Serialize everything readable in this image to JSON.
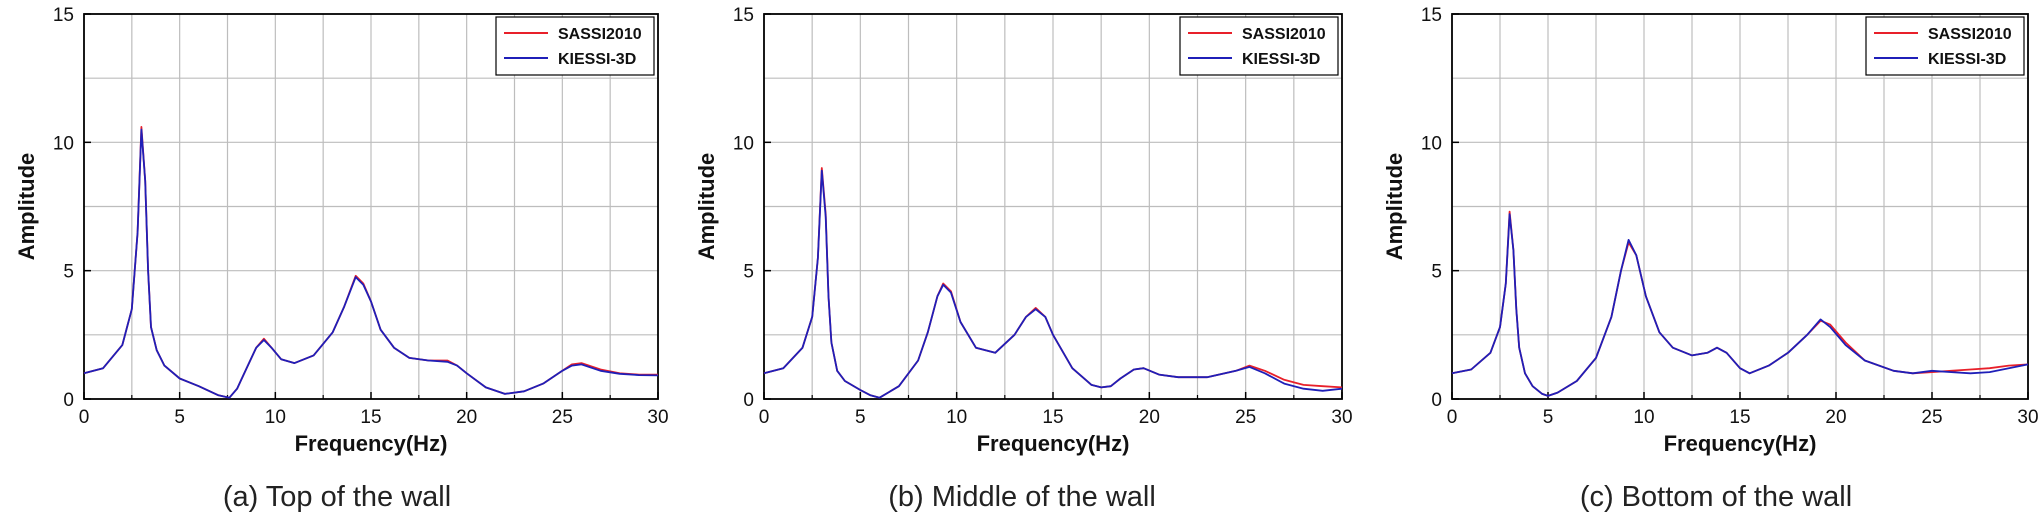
{
  "colors": {
    "sassi": "#e8202a",
    "kiessi": "#1f1fb8",
    "grid": "#bdbdbd",
    "axis": "#000000"
  },
  "chart_data": [
    {
      "type": "line",
      "caption": "(a) Top of the wall",
      "xlabel": "Frequency(Hz)",
      "ylabel": "Amplitude",
      "xlim": [
        0,
        30
      ],
      "ylim": [
        0,
        15
      ],
      "xticks": [
        "0",
        "5",
        "10",
        "15",
        "20",
        "25",
        "30"
      ],
      "yticks": [
        "0",
        "5",
        "10",
        "15"
      ],
      "legend_position": "top-right",
      "series": [
        {
          "name": "SASSI2010",
          "color": "#e8202a",
          "x": [
            0,
            1,
            2,
            2.5,
            2.8,
            3.0,
            3.2,
            3.35,
            3.5,
            3.8,
            4.2,
            5,
            6,
            7,
            7.6,
            8,
            8.5,
            9.0,
            9.4,
            9.8,
            10.3,
            11,
            12,
            13,
            13.6,
            14.2,
            14.6,
            15,
            15.5,
            16.2,
            17,
            18,
            19,
            19.5,
            20,
            21,
            22,
            23,
            24,
            25,
            25.5,
            26,
            27,
            28,
            29,
            30
          ],
          "y": [
            1.0,
            1.2,
            2.1,
            3.5,
            6.5,
            10.6,
            8.5,
            5.0,
            2.8,
            1.9,
            1.3,
            0.8,
            0.5,
            0.15,
            0.05,
            0.4,
            1.2,
            2.0,
            2.35,
            2.0,
            1.55,
            1.4,
            1.7,
            2.6,
            3.6,
            4.8,
            4.5,
            3.8,
            2.7,
            2.0,
            1.6,
            1.5,
            1.5,
            1.3,
            1.0,
            0.45,
            0.2,
            0.3,
            0.6,
            1.1,
            1.35,
            1.4,
            1.15,
            1.0,
            0.95,
            0.95
          ]
        },
        {
          "name": "KIESSI-3D",
          "color": "#1f1fb8",
          "x": [
            0,
            1,
            2,
            2.5,
            2.8,
            3.0,
            3.2,
            3.35,
            3.5,
            3.8,
            4.2,
            5,
            6,
            7,
            7.6,
            8,
            8.5,
            9.0,
            9.4,
            9.8,
            10.3,
            11,
            12,
            13,
            13.6,
            14.2,
            14.6,
            15,
            15.5,
            16.2,
            17,
            18,
            19,
            19.5,
            20,
            21,
            22,
            23,
            24,
            25,
            25.5,
            26,
            27,
            28,
            29,
            30
          ],
          "y": [
            1.0,
            1.2,
            2.1,
            3.5,
            6.5,
            10.5,
            8.5,
            5.0,
            2.8,
            1.9,
            1.3,
            0.8,
            0.5,
            0.15,
            0.05,
            0.4,
            1.2,
            2.0,
            2.3,
            2.0,
            1.55,
            1.4,
            1.7,
            2.6,
            3.6,
            4.75,
            4.45,
            3.8,
            2.7,
            2.0,
            1.6,
            1.5,
            1.45,
            1.3,
            1.0,
            0.45,
            0.2,
            0.3,
            0.6,
            1.1,
            1.3,
            1.35,
            1.1,
            0.98,
            0.93,
            0.92
          ]
        }
      ]
    },
    {
      "type": "line",
      "caption": "(b) Middle of the wall",
      "xlabel": "Frequency(Hz)",
      "ylabel": "Amplitude",
      "xlim": [
        0,
        30
      ],
      "ylim": [
        0,
        15
      ],
      "xticks": [
        "0",
        "5",
        "10",
        "15",
        "20",
        "25",
        "30"
      ],
      "yticks": [
        "0",
        "5",
        "10",
        "15"
      ],
      "legend_position": "top-right",
      "series": [
        {
          "name": "SASSI2010",
          "color": "#e8202a",
          "x": [
            0,
            1,
            2,
            2.5,
            2.8,
            3.0,
            3.2,
            3.35,
            3.5,
            3.8,
            4.2,
            5,
            5.5,
            6,
            7,
            8,
            8.5,
            9,
            9.3,
            9.7,
            10.2,
            11,
            12,
            13,
            13.6,
            14.1,
            14.6,
            15,
            16,
            17,
            17.5,
            18,
            18.5,
            19.2,
            19.7,
            20.5,
            21.5,
            23,
            24.5,
            25.2,
            26,
            27,
            28,
            29,
            30
          ],
          "y": [
            1.0,
            1.2,
            2.0,
            3.2,
            5.5,
            9.0,
            7.2,
            4.0,
            2.2,
            1.1,
            0.7,
            0.35,
            0.15,
            0.05,
            0.5,
            1.5,
            2.6,
            4.0,
            4.5,
            4.2,
            3.0,
            2.0,
            1.8,
            2.5,
            3.2,
            3.55,
            3.2,
            2.5,
            1.2,
            0.55,
            0.45,
            0.5,
            0.8,
            1.15,
            1.2,
            0.95,
            0.85,
            0.85,
            1.1,
            1.3,
            1.1,
            0.75,
            0.55,
            0.5,
            0.45
          ]
        },
        {
          "name": "KIESSI-3D",
          "color": "#1f1fb8",
          "x": [
            0,
            1,
            2,
            2.5,
            2.8,
            3.0,
            3.2,
            3.35,
            3.5,
            3.8,
            4.2,
            5,
            5.5,
            6,
            7,
            8,
            8.5,
            9,
            9.3,
            9.7,
            10.2,
            11,
            12,
            13,
            13.6,
            14.1,
            14.6,
            15,
            16,
            17,
            17.5,
            18,
            18.5,
            19.2,
            19.7,
            20.5,
            21.5,
            23,
            24.5,
            25.2,
            26,
            27,
            28,
            29,
            30
          ],
          "y": [
            1.0,
            1.2,
            2.0,
            3.2,
            5.5,
            8.9,
            7.1,
            4.0,
            2.2,
            1.1,
            0.7,
            0.35,
            0.15,
            0.05,
            0.5,
            1.5,
            2.6,
            4.0,
            4.45,
            4.15,
            3.0,
            2.0,
            1.8,
            2.5,
            3.2,
            3.5,
            3.2,
            2.5,
            1.2,
            0.55,
            0.45,
            0.5,
            0.8,
            1.15,
            1.2,
            0.95,
            0.85,
            0.85,
            1.1,
            1.25,
            1.0,
            0.6,
            0.4,
            0.32,
            0.4
          ]
        }
      ]
    },
    {
      "type": "line",
      "caption": "(c) Bottom of the wall",
      "xlabel": "Frequency(Hz)",
      "ylabel": "Amplitude",
      "xlim": [
        0,
        30
      ],
      "ylim": [
        0,
        15
      ],
      "xticks": [
        "0",
        "5",
        "10",
        "15",
        "20",
        "25",
        "30"
      ],
      "yticks": [
        "0",
        "5",
        "10",
        "15"
      ],
      "legend_position": "top-right",
      "series": [
        {
          "name": "SASSI2010",
          "color": "#e8202a",
          "x": [
            0,
            1,
            2,
            2.5,
            2.8,
            3.0,
            3.2,
            3.35,
            3.5,
            3.8,
            4.2,
            4.7,
            5,
            5.5,
            6.5,
            7.5,
            8.3,
            8.8,
            9.2,
            9.6,
            10.1,
            10.8,
            11.5,
            12.5,
            13.3,
            13.8,
            14.3,
            15,
            15.5,
            16.5,
            17.5,
            18.5,
            19.2,
            19.7,
            20.5,
            21.5,
            23,
            24,
            25,
            26,
            27,
            28,
            29,
            30
          ],
          "y": [
            1.0,
            1.15,
            1.8,
            2.8,
            4.5,
            7.3,
            5.8,
            3.5,
            2.0,
            1.0,
            0.5,
            0.2,
            0.12,
            0.25,
            0.7,
            1.6,
            3.2,
            5.0,
            6.1,
            5.6,
            4.0,
            2.6,
            2.0,
            1.7,
            1.8,
            2.0,
            1.8,
            1.2,
            1.0,
            1.3,
            1.8,
            2.5,
            3.05,
            2.9,
            2.2,
            1.5,
            1.1,
            1.0,
            1.05,
            1.1,
            1.15,
            1.2,
            1.3,
            1.35
          ]
        },
        {
          "name": "KIESSI-3D",
          "color": "#1f1fb8",
          "x": [
            0,
            1,
            2,
            2.5,
            2.8,
            3.0,
            3.2,
            3.35,
            3.5,
            3.8,
            4.2,
            4.7,
            5,
            5.5,
            6.5,
            7.5,
            8.3,
            8.8,
            9.2,
            9.6,
            10.1,
            10.8,
            11.5,
            12.5,
            13.3,
            13.8,
            14.3,
            15,
            15.5,
            16.5,
            17.5,
            18.5,
            19.2,
            19.7,
            20.5,
            21.5,
            23,
            24,
            25,
            26,
            27,
            28,
            29,
            30
          ],
          "y": [
            1.0,
            1.15,
            1.8,
            2.8,
            4.5,
            7.2,
            5.8,
            3.5,
            2.0,
            1.0,
            0.5,
            0.2,
            0.12,
            0.25,
            0.7,
            1.6,
            3.2,
            5.0,
            6.2,
            5.6,
            4.0,
            2.6,
            2.0,
            1.7,
            1.8,
            2.0,
            1.8,
            1.2,
            1.0,
            1.3,
            1.8,
            2.5,
            3.1,
            2.8,
            2.1,
            1.5,
            1.1,
            1.0,
            1.1,
            1.05,
            1.0,
            1.05,
            1.2,
            1.35
          ]
        }
      ]
    }
  ]
}
